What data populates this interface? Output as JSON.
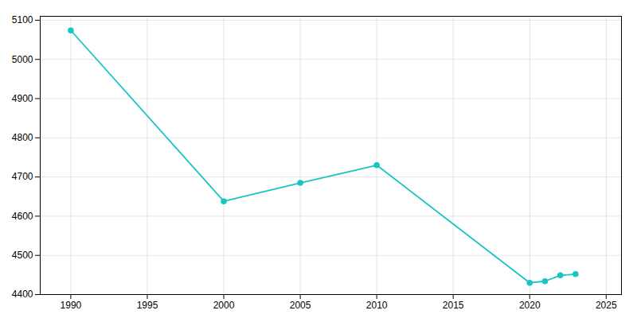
{
  "chart_data": {
    "type": "line",
    "x": [
      1990,
      2000,
      2005,
      2010,
      2020,
      2021,
      2022,
      2023
    ],
    "values": [
      5074,
      4638,
      4685,
      4730,
      4430,
      4434,
      4449,
      4452
    ],
    "color": "#19C4C4",
    "marker": "circle",
    "xlim": [
      1988,
      2026
    ],
    "ylim": [
      4400,
      5110
    ],
    "xticks": [
      1990,
      1995,
      2000,
      2005,
      2010,
      2015,
      2020,
      2025
    ],
    "yticks": [
      4400,
      4500,
      4600,
      4700,
      4800,
      4900,
      5000,
      5100
    ],
    "grid": true
  }
}
